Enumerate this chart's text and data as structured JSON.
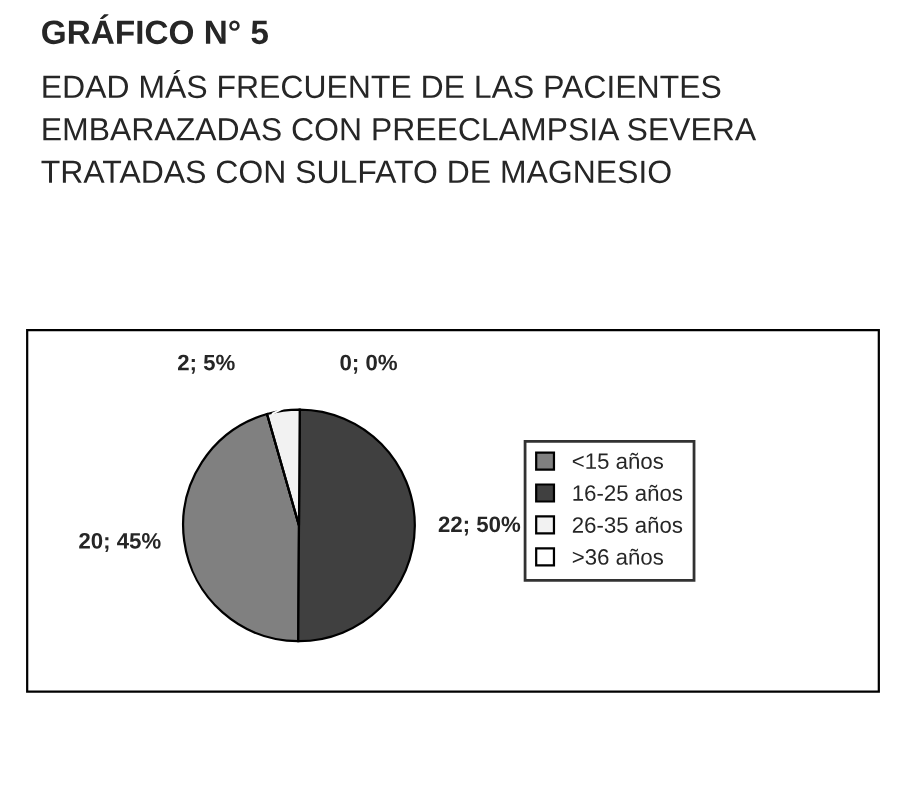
{
  "chart_data": {
    "type": "pie",
    "title": "GRÁFICO N° 5",
    "subtitle": "EDAD MÁS FRECUENTE DE LAS PACIENTES\nEMBARAZADAS CON PREECLAMPSIA SEVERA\nTRATADAS CON SULFATO DE MAGNESIO",
    "categories": [
      "<15 años",
      "16-25 años",
      "26-35 años",
      ">36 años"
    ],
    "values": [
      20,
      22,
      2,
      0
    ],
    "value_labels": [
      "20; 45%",
      "22; 50%",
      "2; 5%",
      "0; 0%"
    ],
    "colors": [
      "#808080",
      "#404040",
      "#f2f2f2",
      "#ffffff"
    ],
    "legend": "right"
  }
}
